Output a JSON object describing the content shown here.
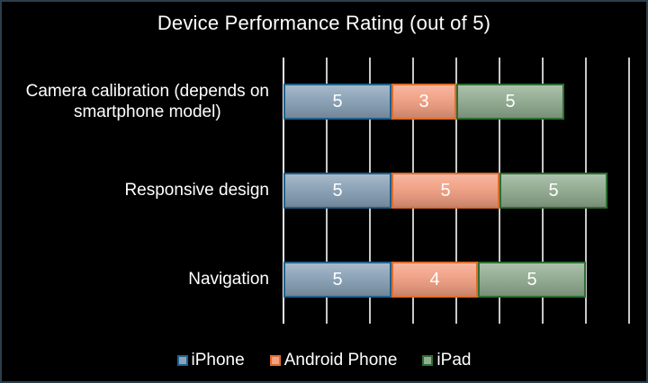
{
  "window": {
    "background_color": "#000000",
    "frame_border_color": "#2d3e4a",
    "text_color": "#ffffff"
  },
  "chart_data": {
    "type": "bar",
    "orientation": "horizontal",
    "stacked": true,
    "title": "Device Performance Rating (out of 5)",
    "categories": [
      "Camera calibration (depends on\nsmartphone model)",
      "Responsive design",
      "Navigation"
    ],
    "series": [
      {
        "name": "iPhone",
        "values": [
          5,
          5,
          5
        ],
        "fill": "#8ba3b8",
        "border": "#21618c"
      },
      {
        "name": "Android Phone",
        "values": [
          3,
          5,
          4
        ],
        "fill": "#f2a184",
        "border": "#e06c2c"
      },
      {
        "name": "iPad",
        "values": [
          5,
          5,
          5
        ],
        "fill": "#93ad92",
        "border": "#2c6e33"
      }
    ],
    "xlim": [
      0,
      16
    ],
    "grid_step": 2,
    "grid": true,
    "gridline_color": "#c8c8c8",
    "axis_line_color": "#eeeeee",
    "value_labels": true,
    "value_label_color": "#ffffff",
    "legend_position": "bottom",
    "x_axis_tick_labels_visible": false
  }
}
